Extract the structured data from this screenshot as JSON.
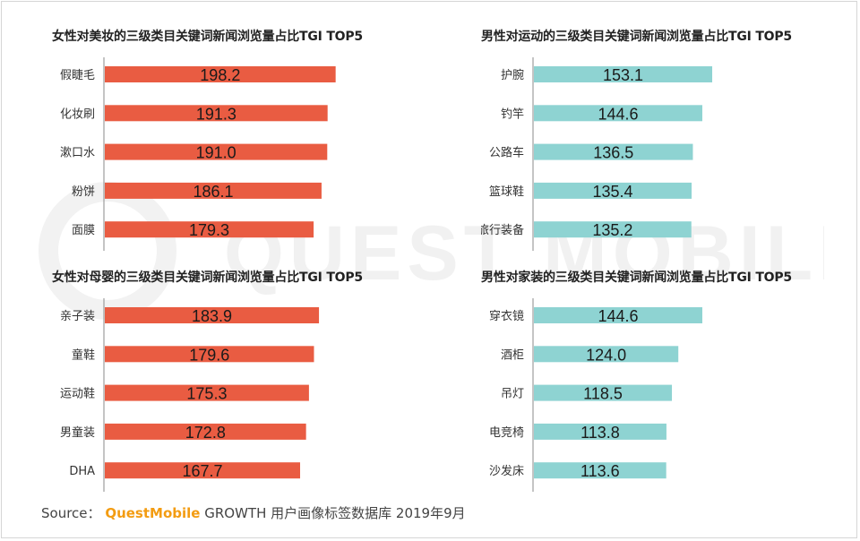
{
  "colors": {
    "female": "#e95c42",
    "male": "#8ed3d2",
    "brand": "#f39c12"
  },
  "watermark": {
    "text": "QUEST MOBILE"
  },
  "source": {
    "label": "Source：",
    "brand": "QuestMobile",
    "text": "GROWTH 用户画像标签数据库 2019年9月"
  },
  "chart_data": [
    {
      "type": "bar",
      "orientation": "horizontal",
      "title": "女性对美妆的三级类目关键词新闻浏览量占比TGI TOP5",
      "categories": [
        "假睫毛",
        "化妆刷",
        "漱口水",
        "粉饼",
        "面膜"
      ],
      "values": [
        198.2,
        191.3,
        191.0,
        186.1,
        179.3
      ],
      "value_labels": [
        "198.2",
        "191.3",
        "191.0",
        "186.1",
        "179.3"
      ],
      "color": "#e95c42",
      "xlim": [
        0,
        200
      ]
    },
    {
      "type": "bar",
      "orientation": "horizontal",
      "title": "男性对运动的三级类目关键词新闻浏览量占比TGI TOP5",
      "categories": [
        "护腕",
        "钓竿",
        "公路车",
        "篮球鞋",
        "旅行装备"
      ],
      "values": [
        153.1,
        144.6,
        136.5,
        135.4,
        135.2
      ],
      "value_labels": [
        "153.1",
        "144.6",
        "136.5",
        "135.4",
        "135.2"
      ],
      "color": "#8ed3d2",
      "xlim": [
        0,
        200
      ]
    },
    {
      "type": "bar",
      "orientation": "horizontal",
      "title": "女性对母婴的三级类目关键词新闻浏览量占比TGI TOP5",
      "categories": [
        "亲子装",
        "童鞋",
        "运动鞋",
        "男童装",
        "DHA"
      ],
      "values": [
        183.9,
        179.6,
        175.3,
        172.8,
        167.7
      ],
      "value_labels": [
        "183.9",
        "179.6",
        "175.3",
        "172.8",
        "167.7"
      ],
      "color": "#e95c42",
      "xlim": [
        0,
        200
      ]
    },
    {
      "type": "bar",
      "orientation": "horizontal",
      "title": "男性对家装的三级类目关键词新闻浏览量占比TGI TOP5",
      "categories": [
        "穿衣镜",
        "酒柜",
        "吊灯",
        "电竞椅",
        "沙发床"
      ],
      "values": [
        144.6,
        124.0,
        118.5,
        113.8,
        113.6
      ],
      "value_labels": [
        "144.6",
        "124.0",
        "118.5",
        "113.8",
        "113.6"
      ],
      "color": "#8ed3d2",
      "xlim": [
        0,
        200
      ]
    }
  ]
}
